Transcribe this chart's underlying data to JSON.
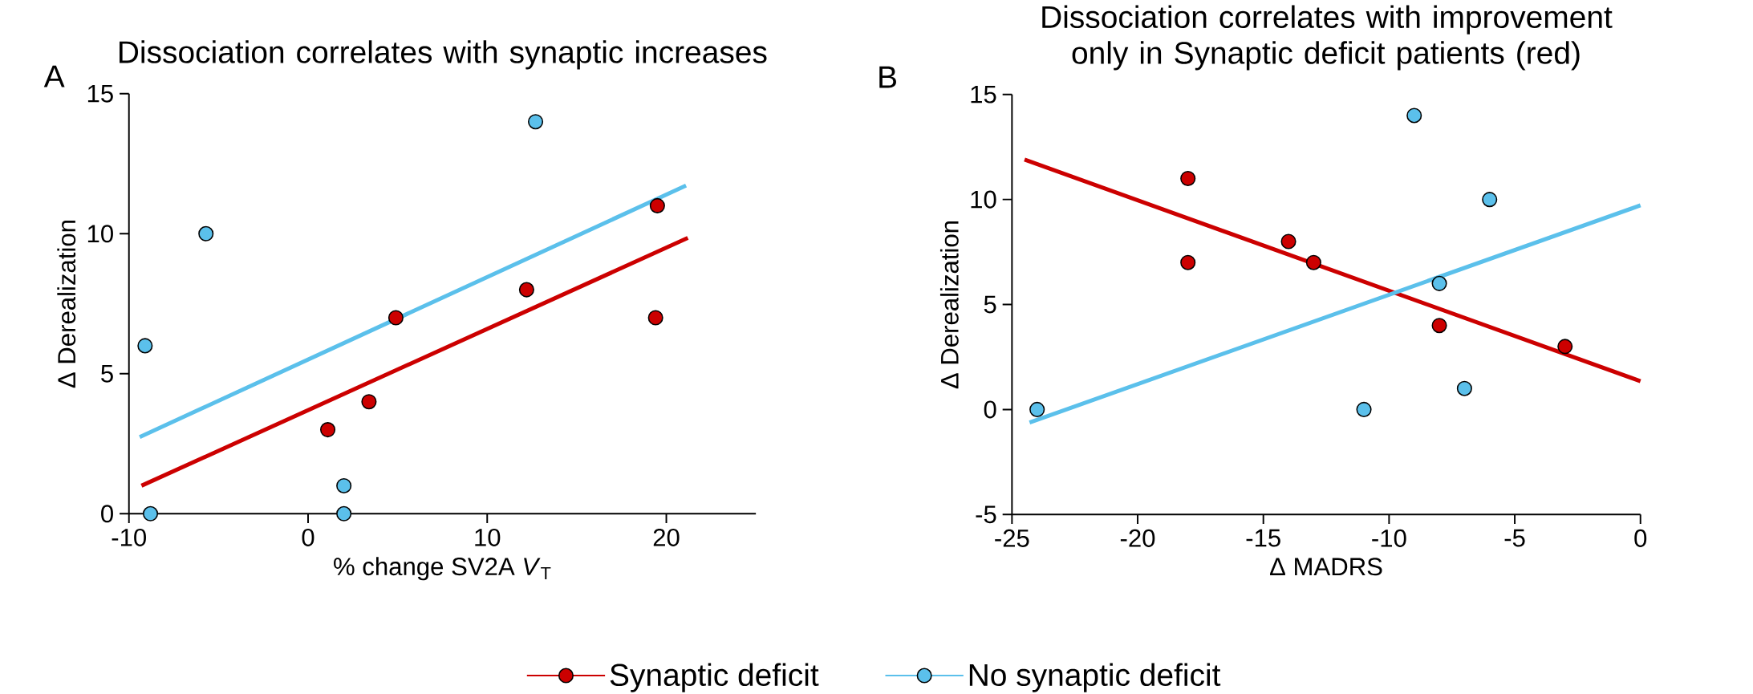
{
  "chart_data": [
    {
      "type": "scatter",
      "title": "Dissociation correlates with synaptic increases",
      "xlabel": "% change SV2A *V*$_{T}$",
      "ylabel": "Δ Derealization",
      "annotations": [
        "A"
      ],
      "xlim": [
        -10,
        25
      ],
      "xticks": [
        -10,
        0,
        10,
        20
      ],
      "ylim": [
        0,
        15
      ],
      "yticks": [
        0,
        5,
        10,
        15
      ],
      "marker": "circle",
      "legend": "bottom",
      "series": [
        {
          "name": "Synaptic deficit",
          "color": "#cc0000",
          "x": [
            1.1,
            3.4,
            4.9,
            12.2,
            19.4,
            19.5
          ],
          "values": [
            3,
            4,
            7,
            8,
            7,
            11
          ]
        },
        {
          "name": "No synaptic deficit",
          "color": "#5bc0eb",
          "x": [
            -9.1,
            -8.8,
            -5.7,
            2.0,
            2.0,
            12.7
          ],
          "values": [
            6,
            0,
            10,
            1,
            0,
            14
          ]
        },
        {
          "type": "line",
          "marker": "none",
          "color": "#cc0000",
          "x": [
            -9.3,
            21.2
          ],
          "values": [
            1.0,
            9.85
          ]
        },
        {
          "type": "line",
          "marker": "none",
          "color": "#5bc0eb",
          "x": [
            -9.4,
            21.1
          ],
          "values": [
            2.74,
            11.72
          ]
        }
      ]
    },
    {
      "type": "scatter",
      "title": "Dissociation correlates with improvement only in Synaptic deficit patients (red)",
      "xlabel": "Δ MADRS",
      "ylabel": "Δ Derealization",
      "annotations": [
        "B"
      ],
      "xlim": [
        -25,
        0
      ],
      "xticks": [
        -25,
        -20,
        -15,
        -10,
        -5,
        0
      ],
      "ylim": [
        -5,
        15
      ],
      "yticks": [
        -5,
        0,
        5,
        10,
        15
      ],
      "marker": "circle",
      "series": [
        {
          "color": "#cc0000",
          "x": [
            -18,
            -18,
            -14,
            -13,
            -8,
            -3
          ],
          "values": [
            11,
            7,
            8,
            7,
            4,
            3
          ]
        },
        {
          "color": "#5bc0eb",
          "x": [
            -24,
            -11,
            -9,
            -8,
            -7,
            -6
          ],
          "values": [
            0,
            0,
            14,
            6,
            1,
            10
          ]
        },
        {
          "type": "line",
          "marker": "none",
          "color": "#cc0000",
          "x": [
            -24.5,
            0
          ],
          "values": [
            11.9,
            1.35
          ]
        },
        {
          "type": "line",
          "marker": "none",
          "color": "#5bc0eb",
          "x": [
            -24.3,
            0
          ],
          "values": [
            -0.62,
            9.72
          ]
        }
      ]
    }
  ]
}
